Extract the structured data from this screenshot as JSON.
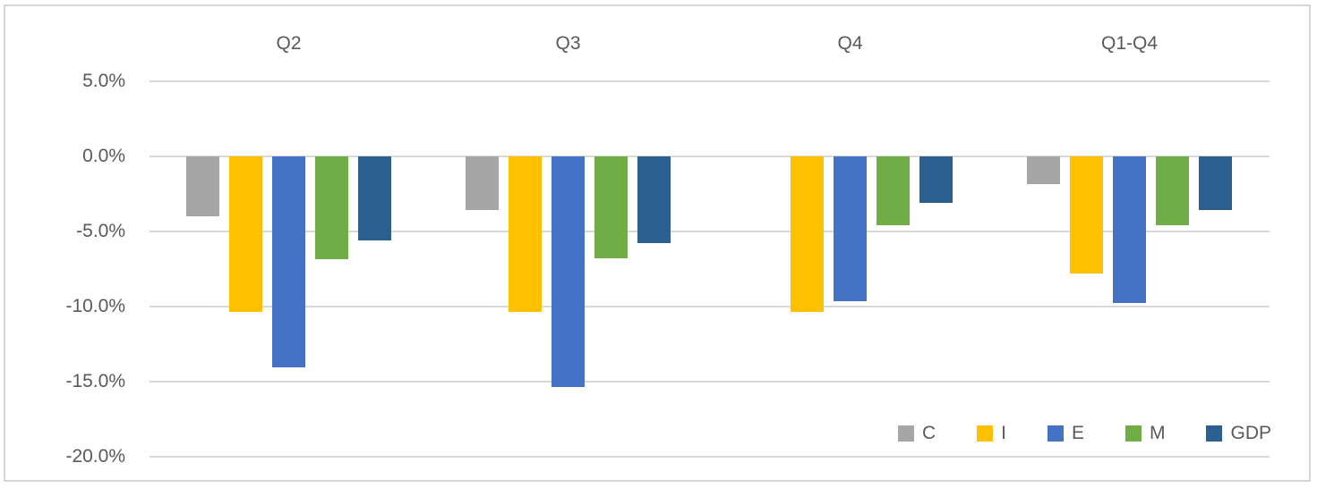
{
  "chart_data": {
    "type": "bar",
    "title": "",
    "xlabel": "",
    "ylabel": "",
    "categories": [
      "Q2",
      "Q3",
      "Q4",
      "Q1-Q4"
    ],
    "series": [
      {
        "name": "C",
        "color": "#A6A6A6",
        "values": [
          -4.0,
          -3.6,
          0.0,
          -1.9
        ]
      },
      {
        "name": "I",
        "color": "#FFC000",
        "values": [
          -10.4,
          -10.4,
          -10.4,
          -7.8
        ]
      },
      {
        "name": "E",
        "color": "#4472C4",
        "values": [
          -14.1,
          -15.4,
          -9.7,
          -9.8
        ]
      },
      {
        "name": "M",
        "color": "#70AD47",
        "values": [
          -6.9,
          -6.8,
          -4.6,
          -4.6
        ]
      },
      {
        "name": "GDP",
        "color": "#2A5F8F",
        "values": [
          -5.6,
          -5.8,
          -3.1,
          -3.6
        ]
      }
    ],
    "ylim": [
      -20,
      5
    ],
    "ytick_step": 5,
    "ytick_labels": [
      "5.0%",
      "0.0%",
      "-5.0%",
      "-10.0%",
      "-15.0%",
      "-20.0%"
    ],
    "grid": true,
    "category_labels_position": "top",
    "legend_position": "bottom-right",
    "colors": {
      "gridline": "#D9D9D9",
      "axis_text": "#595959",
      "frame_border": "#D6D6D6",
      "background": "#FFFFFF"
    }
  }
}
